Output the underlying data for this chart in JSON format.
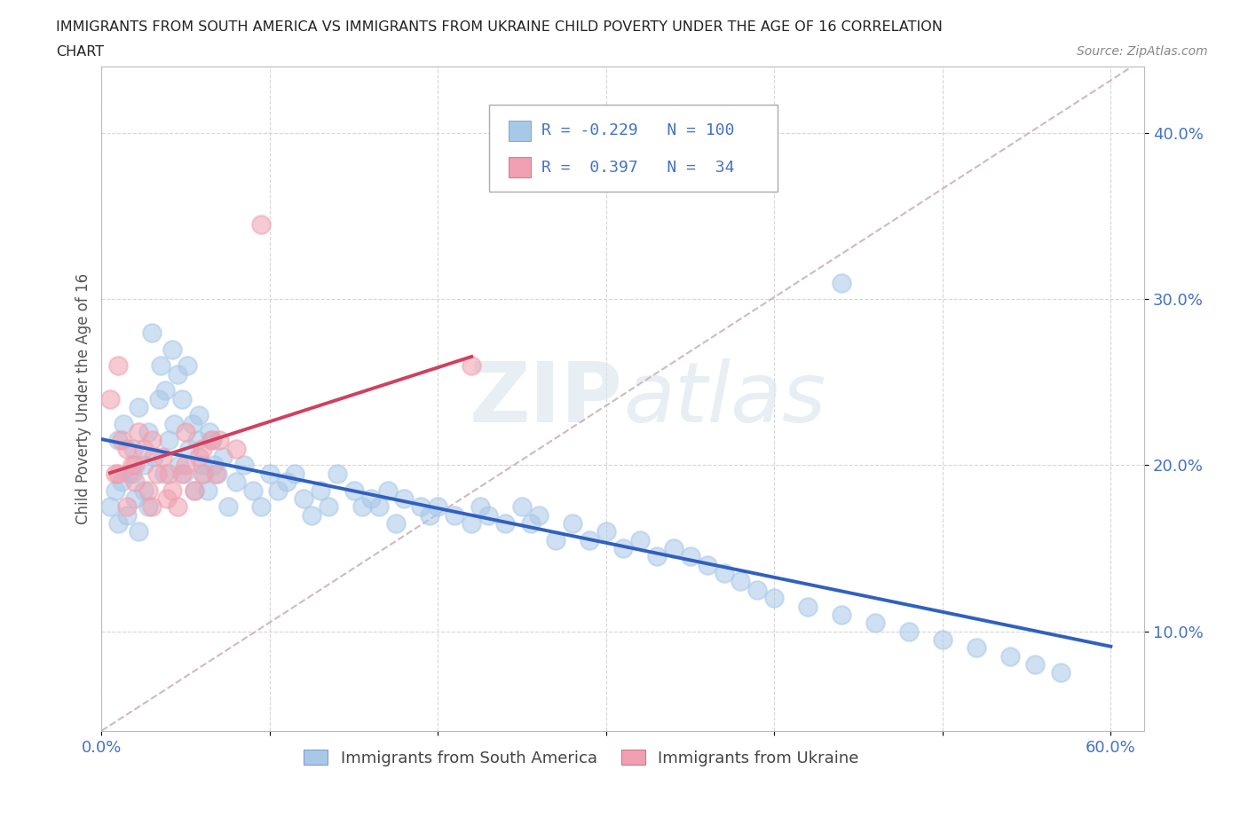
{
  "title_line1": "IMMIGRANTS FROM SOUTH AMERICA VS IMMIGRANTS FROM UKRAINE CHILD POVERTY UNDER THE AGE OF 16 CORRELATION",
  "title_line2": "CHART",
  "source_text": "Source: ZipAtlas.com",
  "ylabel": "Child Poverty Under the Age of 16",
  "xlim": [
    0.0,
    0.62
  ],
  "ylim": [
    0.04,
    0.44
  ],
  "xticks": [
    0.0,
    0.1,
    0.2,
    0.3,
    0.4,
    0.5,
    0.6
  ],
  "xticklabels": [
    "0.0%",
    "",
    "",
    "",
    "",
    "",
    "60.0%"
  ],
  "yticks": [
    0.1,
    0.2,
    0.3,
    0.4
  ],
  "yticklabels": [
    "10.0%",
    "20.0%",
    "30.0%",
    "40.0%"
  ],
  "R_blue": -0.229,
  "N_blue": 100,
  "R_pink": 0.397,
  "N_pink": 34,
  "color_blue": "#a8c8e8",
  "color_pink": "#f0a0b0",
  "line_blue": "#3060c0",
  "line_pink": "#d04060",
  "line_diag_color": "#d0b0b8",
  "legend_label_blue": "Immigrants from South America",
  "legend_label_pink": "Immigrants from Ukraine",
  "watermark_zip": "ZIP",
  "watermark_atlas": "atlas",
  "blue_x": [
    0.005,
    0.008,
    0.01,
    0.012,
    0.015,
    0.018,
    0.02,
    0.022,
    0.025,
    0.028,
    0.01,
    0.013,
    0.016,
    0.019,
    0.022,
    0.025,
    0.028,
    0.031,
    0.034,
    0.037,
    0.04,
    0.043,
    0.046,
    0.049,
    0.052,
    0.055,
    0.058,
    0.061,
    0.064,
    0.067,
    0.03,
    0.035,
    0.038,
    0.042,
    0.045,
    0.048,
    0.051,
    0.054,
    0.057,
    0.06,
    0.063,
    0.066,
    0.069,
    0.072,
    0.075,
    0.08,
    0.085,
    0.09,
    0.095,
    0.1,
    0.105,
    0.11,
    0.115,
    0.12,
    0.125,
    0.13,
    0.135,
    0.14,
    0.15,
    0.155,
    0.16,
    0.165,
    0.17,
    0.175,
    0.18,
    0.19,
    0.195,
    0.2,
    0.21,
    0.22,
    0.225,
    0.23,
    0.24,
    0.25,
    0.255,
    0.26,
    0.27,
    0.28,
    0.29,
    0.3,
    0.31,
    0.32,
    0.33,
    0.34,
    0.35,
    0.36,
    0.37,
    0.38,
    0.39,
    0.4,
    0.42,
    0.44,
    0.46,
    0.48,
    0.5,
    0.52,
    0.54,
    0.555,
    0.57,
    0.44
  ],
  "blue_y": [
    0.175,
    0.185,
    0.165,
    0.19,
    0.17,
    0.195,
    0.18,
    0.16,
    0.2,
    0.175,
    0.215,
    0.225,
    0.195,
    0.21,
    0.235,
    0.185,
    0.22,
    0.205,
    0.24,
    0.195,
    0.215,
    0.225,
    0.2,
    0.195,
    0.21,
    0.185,
    0.23,
    0.195,
    0.22,
    0.2,
    0.28,
    0.26,
    0.245,
    0.27,
    0.255,
    0.24,
    0.26,
    0.225,
    0.215,
    0.2,
    0.185,
    0.215,
    0.195,
    0.205,
    0.175,
    0.19,
    0.2,
    0.185,
    0.175,
    0.195,
    0.185,
    0.19,
    0.195,
    0.18,
    0.17,
    0.185,
    0.175,
    0.195,
    0.185,
    0.175,
    0.18,
    0.175,
    0.185,
    0.165,
    0.18,
    0.175,
    0.17,
    0.175,
    0.17,
    0.165,
    0.175,
    0.17,
    0.165,
    0.175,
    0.165,
    0.17,
    0.155,
    0.165,
    0.155,
    0.16,
    0.15,
    0.155,
    0.145,
    0.15,
    0.145,
    0.14,
    0.135,
    0.13,
    0.125,
    0.12,
    0.115,
    0.11,
    0.105,
    0.1,
    0.095,
    0.09,
    0.085,
    0.08,
    0.075,
    0.31
  ],
  "pink_x": [
    0.005,
    0.008,
    0.01,
    0.012,
    0.015,
    0.018,
    0.02,
    0.022,
    0.025,
    0.028,
    0.03,
    0.033,
    0.036,
    0.039,
    0.042,
    0.045,
    0.048,
    0.05,
    0.055,
    0.058,
    0.06,
    0.065,
    0.068,
    0.01,
    0.015,
    0.02,
    0.03,
    0.04,
    0.05,
    0.06,
    0.07,
    0.08,
    0.095,
    0.22
  ],
  "pink_y": [
    0.24,
    0.195,
    0.26,
    0.215,
    0.175,
    0.2,
    0.19,
    0.22,
    0.21,
    0.185,
    0.175,
    0.195,
    0.205,
    0.18,
    0.185,
    0.175,
    0.195,
    0.2,
    0.185,
    0.205,
    0.195,
    0.215,
    0.195,
    0.195,
    0.21,
    0.2,
    0.215,
    0.195,
    0.22,
    0.21,
    0.215,
    0.21,
    0.345,
    0.26
  ]
}
